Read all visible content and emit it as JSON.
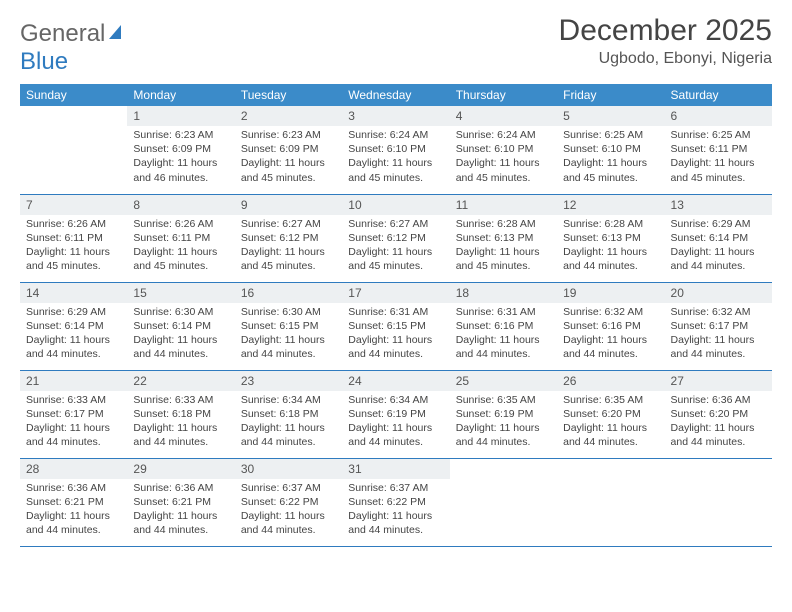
{
  "logo": {
    "general": "General",
    "blue": "Blue"
  },
  "title": "December 2025",
  "location": "Ugbodo, Ebonyi, Nigeria",
  "colors": {
    "header_bg": "#3b8bc9",
    "header_text": "#ffffff",
    "daynum_bg": "#edf0f2",
    "rule": "#2f7bbf",
    "logo_accent": "#2f7bbf"
  },
  "dayHeaders": [
    "Sunday",
    "Monday",
    "Tuesday",
    "Wednesday",
    "Thursday",
    "Friday",
    "Saturday"
  ],
  "weeks": [
    [
      {
        "n": "",
        "sr": "",
        "ss": "",
        "dl": ""
      },
      {
        "n": "1",
        "sr": "Sunrise: 6:23 AM",
        "ss": "Sunset: 6:09 PM",
        "dl": "Daylight: 11 hours and 46 minutes."
      },
      {
        "n": "2",
        "sr": "Sunrise: 6:23 AM",
        "ss": "Sunset: 6:09 PM",
        "dl": "Daylight: 11 hours and 45 minutes."
      },
      {
        "n": "3",
        "sr": "Sunrise: 6:24 AM",
        "ss": "Sunset: 6:10 PM",
        "dl": "Daylight: 11 hours and 45 minutes."
      },
      {
        "n": "4",
        "sr": "Sunrise: 6:24 AM",
        "ss": "Sunset: 6:10 PM",
        "dl": "Daylight: 11 hours and 45 minutes."
      },
      {
        "n": "5",
        "sr": "Sunrise: 6:25 AM",
        "ss": "Sunset: 6:10 PM",
        "dl": "Daylight: 11 hours and 45 minutes."
      },
      {
        "n": "6",
        "sr": "Sunrise: 6:25 AM",
        "ss": "Sunset: 6:11 PM",
        "dl": "Daylight: 11 hours and 45 minutes."
      }
    ],
    [
      {
        "n": "7",
        "sr": "Sunrise: 6:26 AM",
        "ss": "Sunset: 6:11 PM",
        "dl": "Daylight: 11 hours and 45 minutes."
      },
      {
        "n": "8",
        "sr": "Sunrise: 6:26 AM",
        "ss": "Sunset: 6:11 PM",
        "dl": "Daylight: 11 hours and 45 minutes."
      },
      {
        "n": "9",
        "sr": "Sunrise: 6:27 AM",
        "ss": "Sunset: 6:12 PM",
        "dl": "Daylight: 11 hours and 45 minutes."
      },
      {
        "n": "10",
        "sr": "Sunrise: 6:27 AM",
        "ss": "Sunset: 6:12 PM",
        "dl": "Daylight: 11 hours and 45 minutes."
      },
      {
        "n": "11",
        "sr": "Sunrise: 6:28 AM",
        "ss": "Sunset: 6:13 PM",
        "dl": "Daylight: 11 hours and 45 minutes."
      },
      {
        "n": "12",
        "sr": "Sunrise: 6:28 AM",
        "ss": "Sunset: 6:13 PM",
        "dl": "Daylight: 11 hours and 44 minutes."
      },
      {
        "n": "13",
        "sr": "Sunrise: 6:29 AM",
        "ss": "Sunset: 6:14 PM",
        "dl": "Daylight: 11 hours and 44 minutes."
      }
    ],
    [
      {
        "n": "14",
        "sr": "Sunrise: 6:29 AM",
        "ss": "Sunset: 6:14 PM",
        "dl": "Daylight: 11 hours and 44 minutes."
      },
      {
        "n": "15",
        "sr": "Sunrise: 6:30 AM",
        "ss": "Sunset: 6:14 PM",
        "dl": "Daylight: 11 hours and 44 minutes."
      },
      {
        "n": "16",
        "sr": "Sunrise: 6:30 AM",
        "ss": "Sunset: 6:15 PM",
        "dl": "Daylight: 11 hours and 44 minutes."
      },
      {
        "n": "17",
        "sr": "Sunrise: 6:31 AM",
        "ss": "Sunset: 6:15 PM",
        "dl": "Daylight: 11 hours and 44 minutes."
      },
      {
        "n": "18",
        "sr": "Sunrise: 6:31 AM",
        "ss": "Sunset: 6:16 PM",
        "dl": "Daylight: 11 hours and 44 minutes."
      },
      {
        "n": "19",
        "sr": "Sunrise: 6:32 AM",
        "ss": "Sunset: 6:16 PM",
        "dl": "Daylight: 11 hours and 44 minutes."
      },
      {
        "n": "20",
        "sr": "Sunrise: 6:32 AM",
        "ss": "Sunset: 6:17 PM",
        "dl": "Daylight: 11 hours and 44 minutes."
      }
    ],
    [
      {
        "n": "21",
        "sr": "Sunrise: 6:33 AM",
        "ss": "Sunset: 6:17 PM",
        "dl": "Daylight: 11 hours and 44 minutes."
      },
      {
        "n": "22",
        "sr": "Sunrise: 6:33 AM",
        "ss": "Sunset: 6:18 PM",
        "dl": "Daylight: 11 hours and 44 minutes."
      },
      {
        "n": "23",
        "sr": "Sunrise: 6:34 AM",
        "ss": "Sunset: 6:18 PM",
        "dl": "Daylight: 11 hours and 44 minutes."
      },
      {
        "n": "24",
        "sr": "Sunrise: 6:34 AM",
        "ss": "Sunset: 6:19 PM",
        "dl": "Daylight: 11 hours and 44 minutes."
      },
      {
        "n": "25",
        "sr": "Sunrise: 6:35 AM",
        "ss": "Sunset: 6:19 PM",
        "dl": "Daylight: 11 hours and 44 minutes."
      },
      {
        "n": "26",
        "sr": "Sunrise: 6:35 AM",
        "ss": "Sunset: 6:20 PM",
        "dl": "Daylight: 11 hours and 44 minutes."
      },
      {
        "n": "27",
        "sr": "Sunrise: 6:36 AM",
        "ss": "Sunset: 6:20 PM",
        "dl": "Daylight: 11 hours and 44 minutes."
      }
    ],
    [
      {
        "n": "28",
        "sr": "Sunrise: 6:36 AM",
        "ss": "Sunset: 6:21 PM",
        "dl": "Daylight: 11 hours and 44 minutes."
      },
      {
        "n": "29",
        "sr": "Sunrise: 6:36 AM",
        "ss": "Sunset: 6:21 PM",
        "dl": "Daylight: 11 hours and 44 minutes."
      },
      {
        "n": "30",
        "sr": "Sunrise: 6:37 AM",
        "ss": "Sunset: 6:22 PM",
        "dl": "Daylight: 11 hours and 44 minutes."
      },
      {
        "n": "31",
        "sr": "Sunrise: 6:37 AM",
        "ss": "Sunset: 6:22 PM",
        "dl": "Daylight: 11 hours and 44 minutes."
      },
      {
        "n": "",
        "sr": "",
        "ss": "",
        "dl": ""
      },
      {
        "n": "",
        "sr": "",
        "ss": "",
        "dl": ""
      },
      {
        "n": "",
        "sr": "",
        "ss": "",
        "dl": ""
      }
    ]
  ]
}
